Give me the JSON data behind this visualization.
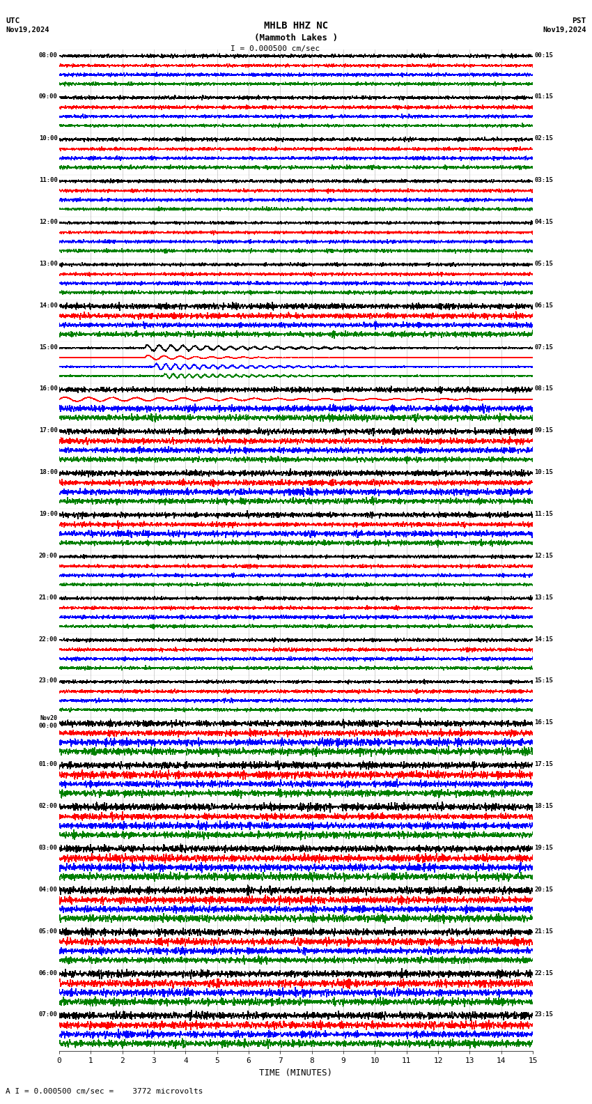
{
  "title_line1": "MHLB HHZ NC",
  "title_line2": "(Mammoth Lakes )",
  "scale_text": "I = 0.000500 cm/sec",
  "bottom_text": "A I = 0.000500 cm/sec =    3772 microvolts",
  "utc_label": "UTC",
  "utc_date": "Nov19,2024",
  "pst_label": "PST",
  "pst_date": "Nov19,2024",
  "xlabel": "TIME (MINUTES)",
  "x_ticks": [
    0,
    1,
    2,
    3,
    4,
    5,
    6,
    7,
    8,
    9,
    10,
    11,
    12,
    13,
    14,
    15
  ],
  "left_times": [
    "08:00",
    "09:00",
    "10:00",
    "11:00",
    "12:00",
    "13:00",
    "14:00",
    "15:00",
    "16:00",
    "17:00",
    "18:00",
    "19:00",
    "20:00",
    "21:00",
    "22:00",
    "23:00",
    "Nov20\n00:00",
    "01:00",
    "02:00",
    "03:00",
    "04:00",
    "05:00",
    "06:00",
    "07:00"
  ],
  "right_times": [
    "00:15",
    "01:15",
    "02:15",
    "03:15",
    "04:15",
    "05:15",
    "06:15",
    "07:15",
    "08:15",
    "09:15",
    "10:15",
    "11:15",
    "12:15",
    "13:15",
    "14:15",
    "15:15",
    "16:15",
    "17:15",
    "18:15",
    "19:15",
    "20:15",
    "21:15",
    "22:15",
    "23:15"
  ],
  "n_rows": 24,
  "channels": 4,
  "channel_colors": [
    "black",
    "red",
    "blue",
    "green"
  ],
  "bg_color": "white",
  "seed": 42,
  "t_points": 2000,
  "t_max": 15
}
